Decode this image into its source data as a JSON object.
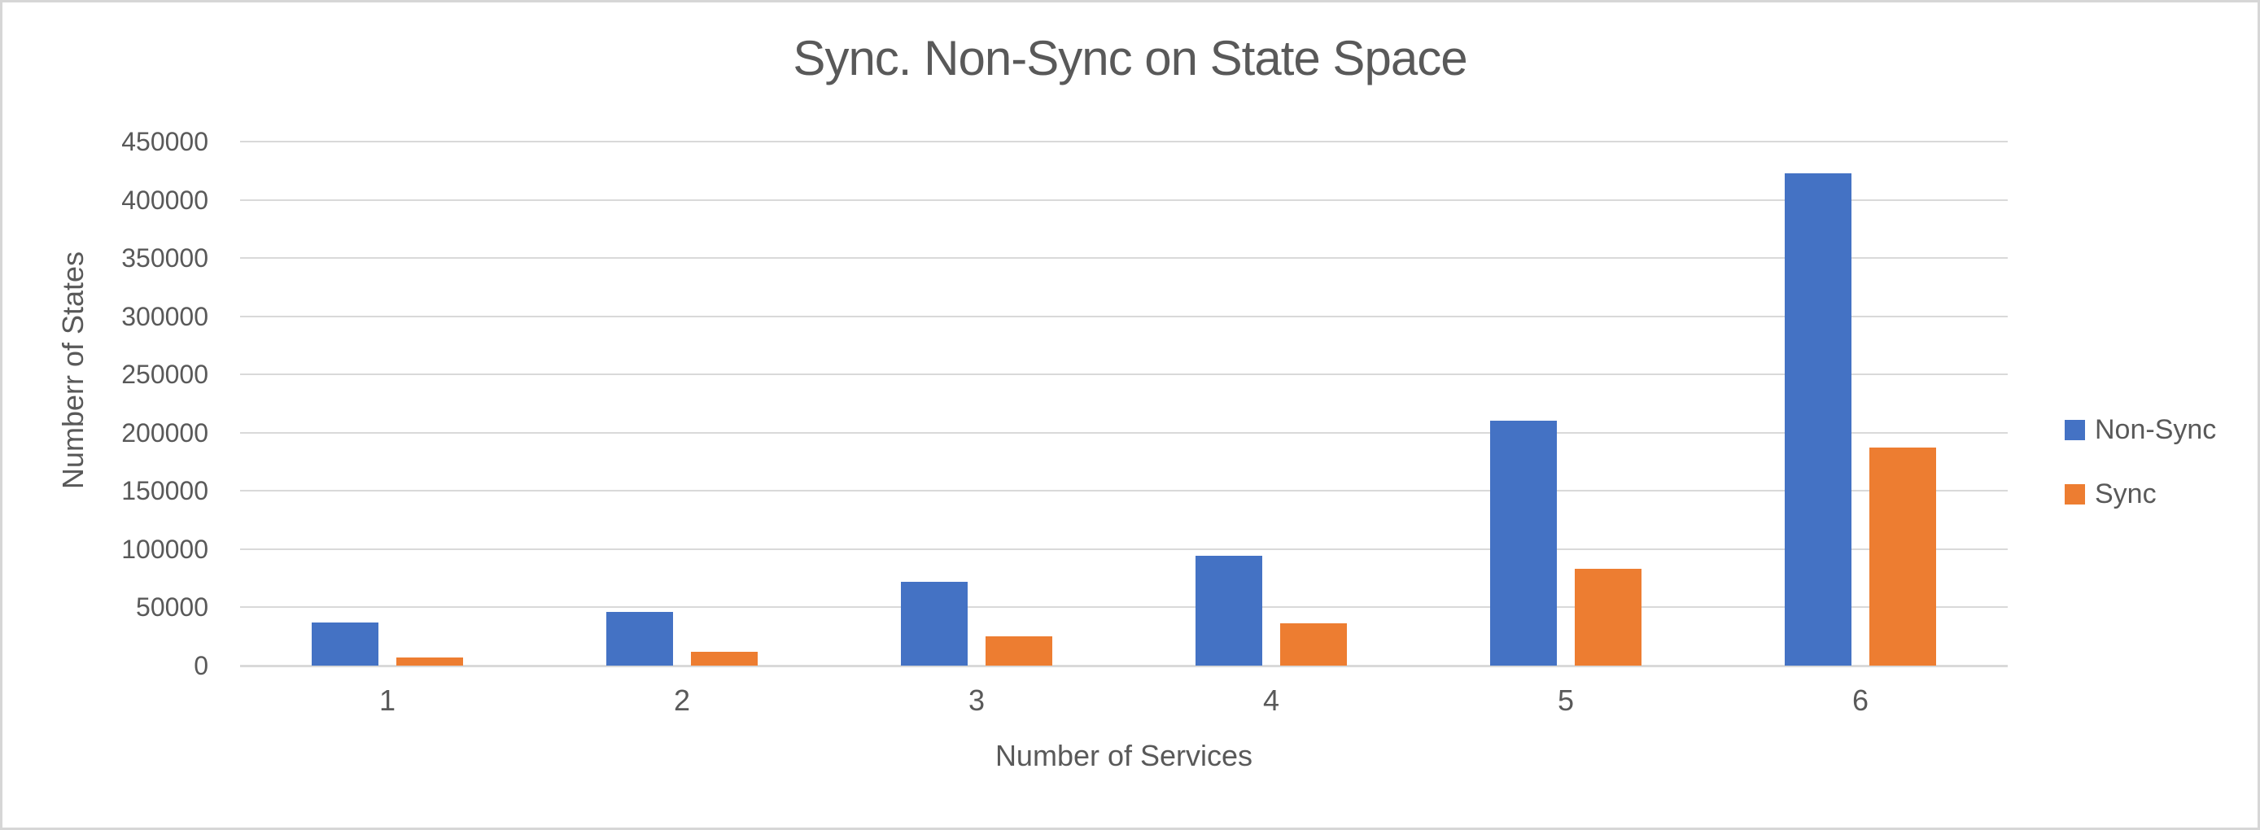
{
  "chart_data": {
    "type": "bar",
    "title": "Sync. Non-Sync on State Space",
    "xlabel": "Number of Services",
    "ylabel": "Numberr of States",
    "categories": [
      "1",
      "2",
      "3",
      "4",
      "5",
      "6"
    ],
    "series": [
      {
        "name": "Non-Sync",
        "color": "#4472C4",
        "values": [
          37000,
          46000,
          72000,
          94000,
          210000,
          423000
        ]
      },
      {
        "name": "Sync",
        "color": "#ED7D31",
        "values": [
          7000,
          12000,
          25000,
          36000,
          83000,
          187000
        ]
      }
    ],
    "ylim": [
      0,
      450000
    ],
    "ytick_step": 50000,
    "ytick_labels": [
      "0",
      "50000",
      "100000",
      "150000",
      "200000",
      "250000",
      "300000",
      "350000",
      "400000",
      "450000"
    ],
    "grid": true,
    "legend_position": "right",
    "colors": {
      "text": "#595959",
      "gridline": "#D9D9D9",
      "background": "#FFFFFF",
      "frame_border": "#D6D6D6"
    }
  }
}
